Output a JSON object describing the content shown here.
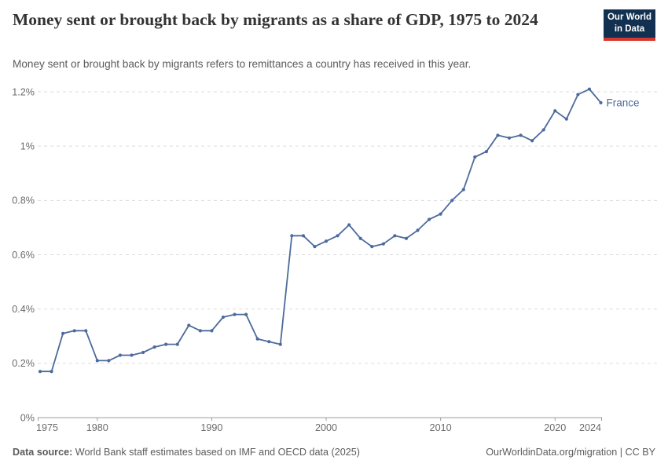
{
  "header": {
    "title": "Money sent or brought back by migrants as a share of GDP, 1975 to 2024",
    "subtitle": "Money sent or brought back by migrants refers to remittances a country has received in this year.",
    "logo": {
      "line1": "Our World",
      "line2": "in Data",
      "bg_color": "#12304f",
      "accent_color": "#d8352f"
    }
  },
  "chart_data": {
    "type": "line",
    "title": "Money sent or brought back by migrants as a share of GDP, 1975 to 2024",
    "xlabel": "",
    "ylabel": "",
    "xlim": [
      1975,
      2024
    ],
    "ylim": [
      0,
      1.2
    ],
    "grid": "horizontal dashed",
    "legend_position": "end-of-line label",
    "xticks": [
      1975,
      1980,
      1990,
      2000,
      2010,
      2020,
      2024
    ],
    "yticks": [
      0,
      0.2,
      0.4,
      0.6,
      0.8,
      1.0,
      1.2
    ],
    "ytick_labels": [
      "0%",
      "0.2%",
      "0.4%",
      "0.6%",
      "0.8%",
      "1%",
      "1.2%"
    ],
    "x": [
      1975,
      1976,
      1977,
      1978,
      1979,
      1980,
      1981,
      1982,
      1983,
      1984,
      1985,
      1986,
      1987,
      1988,
      1989,
      1990,
      1991,
      1992,
      1993,
      1994,
      1995,
      1996,
      1997,
      1998,
      1999,
      2000,
      2001,
      2002,
      2003,
      2004,
      2005,
      2006,
      2007,
      2008,
      2009,
      2010,
      2011,
      2012,
      2013,
      2014,
      2015,
      2016,
      2017,
      2018,
      2019,
      2020,
      2021,
      2022,
      2023,
      2024
    ],
    "series": [
      {
        "name": "France",
        "color": "#4c6a9c",
        "values": [
          0.17,
          0.17,
          0.31,
          0.32,
          0.32,
          0.21,
          0.21,
          0.23,
          0.23,
          0.24,
          0.26,
          0.27,
          0.27,
          0.34,
          0.32,
          0.32,
          0.37,
          0.38,
          0.38,
          0.29,
          0.28,
          0.27,
          0.67,
          0.67,
          0.63,
          0.65,
          0.67,
          0.71,
          0.66,
          0.63,
          0.64,
          0.67,
          0.66,
          0.69,
          0.73,
          0.75,
          0.8,
          0.84,
          0.96,
          0.98,
          1.04,
          1.03,
          1.04,
          1.02,
          1.06,
          1.13,
          1.1,
          1.19,
          1.21,
          1.16
        ]
      }
    ]
  },
  "footer": {
    "source_label": "Data source:",
    "source_text": " World Bank staff estimates based on IMF and OECD data (2025)",
    "credit": "OurWorldinData.org/migration | CC BY"
  }
}
